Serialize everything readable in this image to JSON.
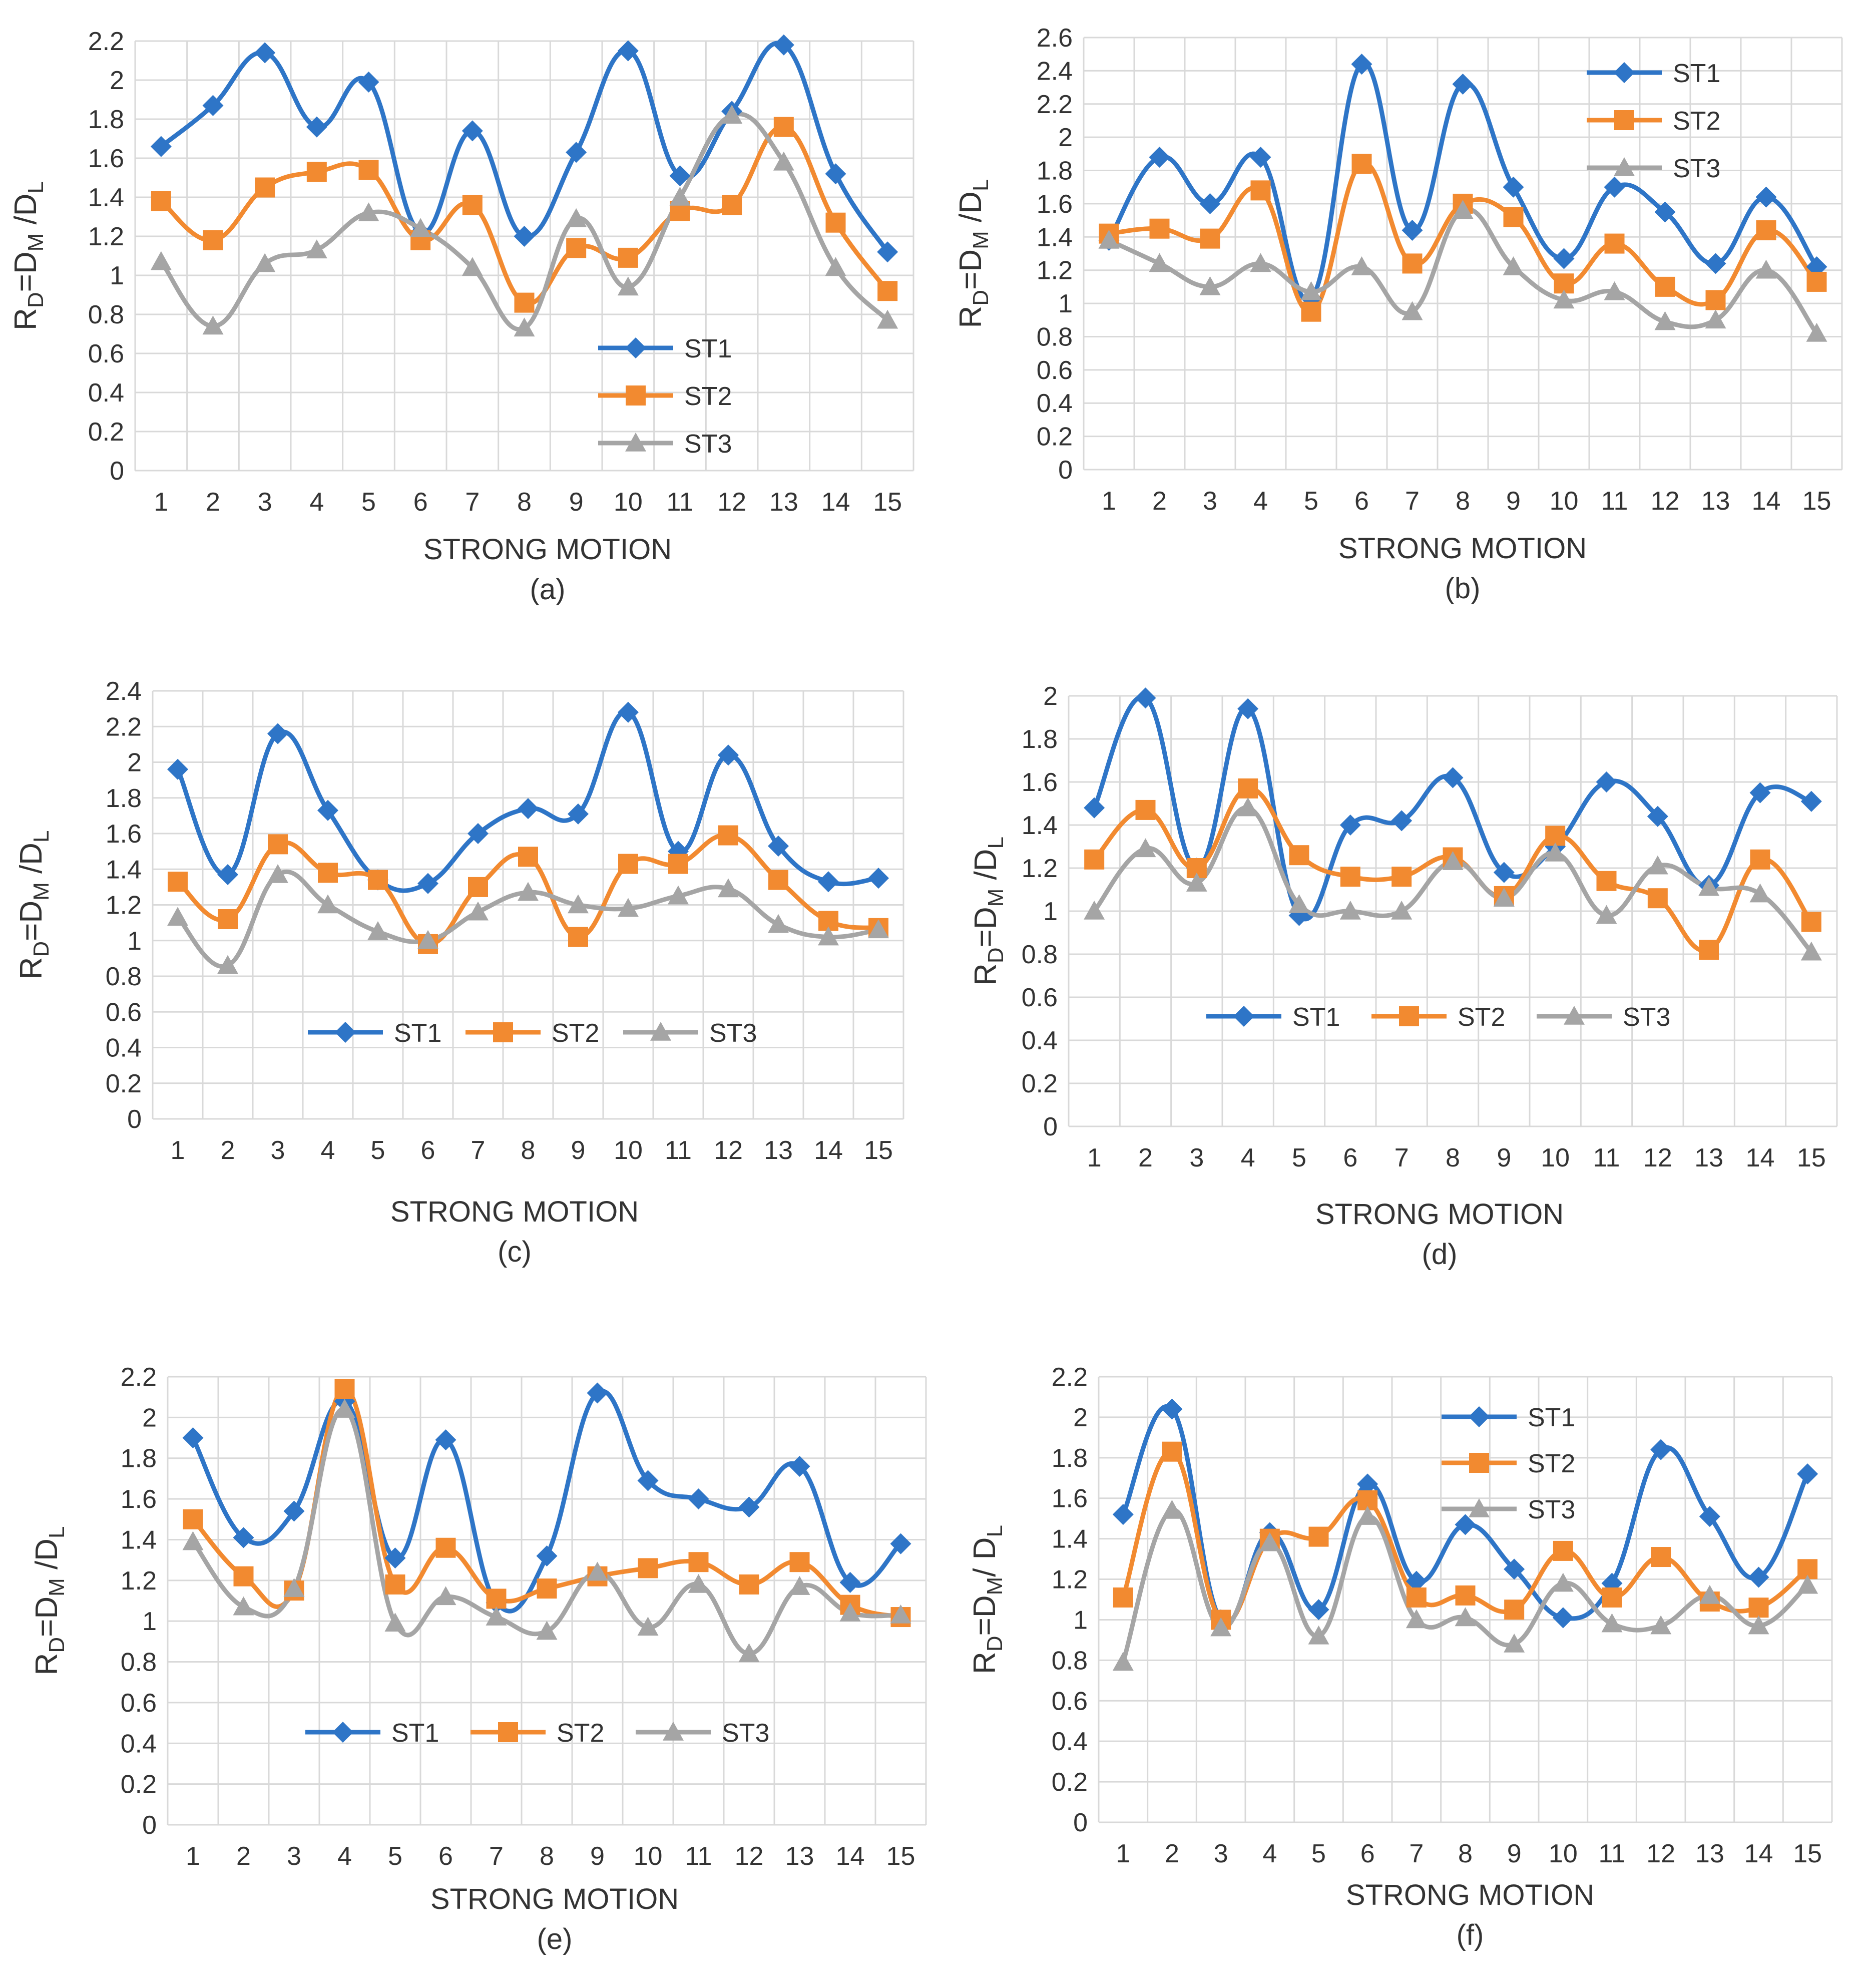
{
  "colors": {
    "ST1": "#2E75C7",
    "ST2": "#F28A30",
    "ST3": "#A5A5A5",
    "grid": "#D9D9D9",
    "text": "#333333"
  },
  "chart_data": [
    {
      "panel": "(a)",
      "type": "line",
      "xlabel": "STRONG MOTION",
      "ylabel": {
        "main": "R",
        "sub1": "D",
        "mid": "=D",
        "sub2": "M",
        "mid2": " /D",
        "sub3": "L"
      },
      "ylim": [
        0,
        2.2
      ],
      "ystep": 0.2,
      "categories": [
        "1",
        "2",
        "3",
        "4",
        "5",
        "6",
        "7",
        "8",
        "9",
        "10",
        "11",
        "12",
        "13",
        "14",
        "15"
      ],
      "yticks": [
        "0",
        "0.2",
        "0.4",
        "0.6",
        "0.8",
        "1",
        "1.2",
        "1.4",
        "1.6",
        "1.8",
        "2",
        "2.2"
      ],
      "legend_position": "bottom-right-vertical",
      "series": [
        {
          "name": "ST1",
          "values": [
            1.66,
            1.87,
            2.14,
            1.76,
            1.99,
            1.22,
            1.74,
            1.2,
            1.63,
            2.15,
            1.51,
            1.84,
            2.18,
            1.52,
            1.12
          ]
        },
        {
          "name": "ST2",
          "values": [
            1.38,
            1.18,
            1.45,
            1.53,
            1.54,
            1.18,
            1.36,
            0.86,
            1.14,
            1.09,
            1.33,
            1.36,
            1.76,
            1.27,
            0.92
          ]
        },
        {
          "name": "ST3",
          "values": [
            1.07,
            0.74,
            1.06,
            1.13,
            1.32,
            1.24,
            1.04,
            0.73,
            1.29,
            0.94,
            1.4,
            1.82,
            1.58,
            1.04,
            0.77
          ]
        }
      ]
    },
    {
      "panel": "(b)",
      "type": "line",
      "xlabel": "STRONG MOTION",
      "ylabel": {
        "main": "R",
        "sub1": "D",
        "mid": "=D",
        "sub2": "M",
        "mid2": " /D",
        "sub3": "L"
      },
      "ylim": [
        0,
        2.6
      ],
      "ystep": 0.2,
      "categories": [
        "1",
        "2",
        "3",
        "4",
        "5",
        "6",
        "7",
        "8",
        "9",
        "10",
        "11",
        "12",
        "13",
        "14",
        "15"
      ],
      "yticks": [
        "0",
        "0.2",
        "0.4",
        "0.6",
        "0.8",
        "1",
        "1.2",
        "1.4",
        "1.6",
        "1.8",
        "2",
        "2.2",
        "2.4",
        "2.6"
      ],
      "legend_position": "top-right-vertical",
      "series": [
        {
          "name": "ST1",
          "values": [
            1.38,
            1.88,
            1.6,
            1.88,
            1.03,
            2.44,
            1.44,
            2.32,
            1.7,
            1.27,
            1.7,
            1.55,
            1.24,
            1.64,
            1.22
          ]
        },
        {
          "name": "ST2",
          "values": [
            1.42,
            1.45,
            1.39,
            1.68,
            0.95,
            1.84,
            1.24,
            1.6,
            1.52,
            1.12,
            1.36,
            1.1,
            1.02,
            1.44,
            1.13
          ]
        },
        {
          "name": "ST3",
          "values": [
            1.38,
            1.24,
            1.1,
            1.24,
            1.07,
            1.22,
            0.95,
            1.56,
            1.22,
            1.02,
            1.07,
            0.89,
            0.9,
            1.2,
            0.82
          ]
        }
      ]
    },
    {
      "panel": "(c)",
      "type": "line",
      "xlabel": "STRONG MOTION",
      "ylabel": {
        "main": "R",
        "sub1": "D",
        "mid": "=D",
        "sub2": "M",
        "mid2": " /D",
        "sub3": "L"
      },
      "ylim": [
        0,
        2.4
      ],
      "ystep": 0.2,
      "categories": [
        "1",
        "2",
        "3",
        "4",
        "5",
        "6",
        "7",
        "8",
        "9",
        "10",
        "11",
        "12",
        "13",
        "14",
        "15"
      ],
      "yticks": [
        "0",
        "0.2",
        "0.4",
        "0.6",
        "0.8",
        "1",
        "1.2",
        "1.4",
        "1.6",
        "1.8",
        "2",
        "2.2",
        "2.4"
      ],
      "legend_position": "bottom-horizontal",
      "series": [
        {
          "name": "ST1",
          "values": [
            1.96,
            1.37,
            2.16,
            1.73,
            1.34,
            1.32,
            1.6,
            1.74,
            1.71,
            2.28,
            1.5,
            2.04,
            1.53,
            1.33,
            1.35
          ]
        },
        {
          "name": "ST2",
          "values": [
            1.33,
            1.12,
            1.54,
            1.38,
            1.34,
            0.98,
            1.3,
            1.47,
            1.02,
            1.43,
            1.43,
            1.59,
            1.34,
            1.11,
            1.07
          ]
        },
        {
          "name": "ST3",
          "values": [
            1.13,
            0.86,
            1.37,
            1.2,
            1.05,
            1.0,
            1.16,
            1.27,
            1.2,
            1.18,
            1.25,
            1.29,
            1.09,
            1.02,
            1.06
          ]
        }
      ]
    },
    {
      "panel": "(d)",
      "type": "line",
      "xlabel": "STRONG MOTION",
      "ylabel": {
        "main": "R",
        "sub1": "D",
        "mid": "=D",
        "sub2": "M",
        "mid2": " /D",
        "sub3": "L"
      },
      "ylim": [
        0,
        2
      ],
      "ystep": 0.2,
      "categories": [
        "1",
        "2",
        "3",
        "4",
        "5",
        "6",
        "7",
        "8",
        "9",
        "10",
        "11",
        "12",
        "13",
        "14",
        "15"
      ],
      "yticks": [
        "0",
        "0.2",
        "0.4",
        "0.6",
        "0.8",
        "1",
        "1.2",
        "1.4",
        "1.6",
        "1.8",
        "2"
      ],
      "legend_position": "bottom-horizontal",
      "series": [
        {
          "name": "ST1",
          "values": [
            1.48,
            1.99,
            1.2,
            1.94,
            0.98,
            1.4,
            1.42,
            1.62,
            1.18,
            1.3,
            1.6,
            1.44,
            1.12,
            1.55,
            1.51
          ]
        },
        {
          "name": "ST2",
          "values": [
            1.24,
            1.47,
            1.2,
            1.57,
            1.26,
            1.16,
            1.16,
            1.25,
            1.07,
            1.35,
            1.14,
            1.06,
            0.82,
            1.24,
            0.95
          ]
        },
        {
          "name": "ST3",
          "values": [
            1.0,
            1.29,
            1.13,
            1.48,
            1.03,
            1.0,
            1.0,
            1.23,
            1.06,
            1.27,
            0.98,
            1.21,
            1.11,
            1.08,
            0.81
          ]
        }
      ]
    },
    {
      "panel": "(e)",
      "type": "line",
      "xlabel": "STRONG MOTION",
      "ylabel": {
        "main": "R",
        "sub1": "D",
        "mid": "=D",
        "sub2": "M",
        "mid2": " /D",
        "sub3": "L"
      },
      "ylim": [
        0,
        2.2
      ],
      "ystep": 0.2,
      "categories": [
        "1",
        "2",
        "3",
        "4",
        "5",
        "6",
        "7",
        "8",
        "9",
        "10",
        "11",
        "12",
        "13",
        "14",
        "15"
      ],
      "yticks": [
        "0",
        "0.2",
        "0.4",
        "0.6",
        "0.8",
        "1",
        "1.2",
        "1.4",
        "1.6",
        "1.8",
        "2",
        "2.2"
      ],
      "legend_position": "bottom-horizontal",
      "series": [
        {
          "name": "ST1",
          "values": [
            1.9,
            1.41,
            1.54,
            2.08,
            1.31,
            1.89,
            1.09,
            1.32,
            2.12,
            1.69,
            1.6,
            1.56,
            1.76,
            1.19,
            1.38
          ]
        },
        {
          "name": "ST2",
          "values": [
            1.5,
            1.22,
            1.15,
            2.14,
            1.18,
            1.36,
            1.11,
            1.16,
            1.22,
            1.26,
            1.29,
            1.18,
            1.29,
            1.08,
            1.02
          ]
        },
        {
          "name": "ST3",
          "values": [
            1.39,
            1.07,
            1.16,
            2.04,
            0.99,
            1.12,
            1.02,
            0.95,
            1.24,
            0.97,
            1.18,
            0.84,
            1.17,
            1.04,
            1.03
          ]
        }
      ]
    },
    {
      "panel": "(f)",
      "type": "line",
      "xlabel": "STRONG MOTION",
      "ylabel": {
        "main": "R",
        "sub1": "D",
        "mid": "=D",
        "sub2": "M",
        "mid2": "/ D",
        "sub3": "L"
      },
      "ylim": [
        0,
        2.2
      ],
      "ystep": 0.2,
      "categories": [
        "1",
        "2",
        "3",
        "4",
        "5",
        "6",
        "7",
        "8",
        "9",
        "10",
        "11",
        "12",
        "13",
        "14",
        "15"
      ],
      "yticks": [
        "0",
        "0.2",
        "0.4",
        "0.6",
        "0.8",
        "1",
        "1.2",
        "1.4",
        "1.6",
        "1.8",
        "2",
        "2.2"
      ],
      "legend_position": "top-right-vertical",
      "series": [
        {
          "name": "ST1",
          "values": [
            1.52,
            2.04,
            1.0,
            1.43,
            1.05,
            1.67,
            1.19,
            1.47,
            1.25,
            1.01,
            1.18,
            1.84,
            1.51,
            1.21,
            1.72
          ]
        },
        {
          "name": "ST2",
          "values": [
            1.11,
            1.83,
            1.0,
            1.4,
            1.41,
            1.59,
            1.11,
            1.12,
            1.05,
            1.34,
            1.11,
            1.31,
            1.09,
            1.06,
            1.25
          ]
        },
        {
          "name": "ST3",
          "values": [
            0.79,
            1.54,
            0.96,
            1.38,
            0.92,
            1.51,
            1.0,
            1.01,
            0.88,
            1.18,
            0.98,
            0.97,
            1.12,
            0.97,
            1.17
          ]
        }
      ]
    }
  ]
}
